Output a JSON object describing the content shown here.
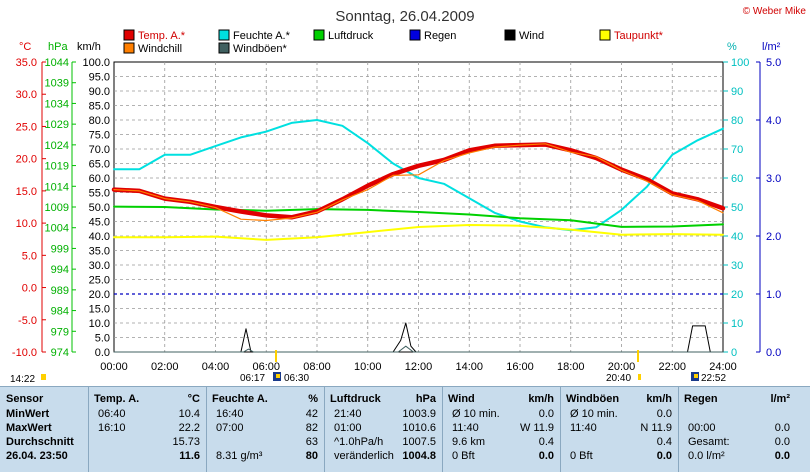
{
  "header": {
    "title": "Sonntag, 26.04.2009",
    "credit": "© Weber Mike"
  },
  "colors": {
    "temp": "#e00000",
    "humidity": "#00e0e0",
    "pressure": "#00d000",
    "rain": "#0000e0",
    "wind": "#000000",
    "dewpoint": "#ffff00",
    "windchill": "#ff7f00",
    "gust": "#406060"
  },
  "legend": [
    {
      "label": "Temp. A.*",
      "color": "#e00000"
    },
    {
      "label": "Feuchte A.*",
      "color": "#00e0e0"
    },
    {
      "label": "Luftdruck",
      "color": "#00d000"
    },
    {
      "label": "Regen",
      "color": "#0000e0"
    },
    {
      "label": "Wind",
      "color": "#000000"
    },
    {
      "label": "Taupunkt*",
      "color": "#ffff00"
    },
    {
      "label": "Windchill",
      "color": "#ff7f00"
    },
    {
      "label": "Windböen*",
      "color": "#406060"
    }
  ],
  "axes": {
    "unit_c": "°C",
    "unit_hpa": "hPa",
    "unit_kmh": "km/h",
    "unit_pct": "%",
    "unit_lm2": "l/m²",
    "celsius": [
      "35.0",
      "30.0",
      "25.0",
      "20.0",
      "15.0",
      "10.0",
      "5.0",
      "0.0",
      "-5.0",
      "-10.0"
    ],
    "hpa": [
      "1044",
      "1039",
      "1034",
      "1029",
      "1024",
      "1019",
      "1014",
      "1009",
      "1004",
      "999",
      "994",
      "989",
      "984",
      "979",
      "974"
    ],
    "kmh": [
      "100.0",
      "95.0",
      "90.0",
      "85.0",
      "80.0",
      "75.0",
      "70.0",
      "65.0",
      "60.0",
      "55.0",
      "50.0",
      "45.0",
      "40.0",
      "35.0",
      "30.0",
      "25.0",
      "20.0",
      "15.0",
      "10.0",
      "5.0",
      "0.0"
    ],
    "pct": [
      "100",
      "90",
      "80",
      "70",
      "60",
      "50",
      "40",
      "30",
      "20",
      "10",
      "0"
    ],
    "lm2": [
      "5.0",
      "4.0",
      "3.0",
      "2.0",
      "1.0",
      "0.0"
    ],
    "x": [
      "00:00",
      "02:00",
      "04:00",
      "06:00",
      "08:00",
      "10:00",
      "12:00",
      "14:00",
      "16:00",
      "18:00",
      "20:00",
      "22:00",
      "24:00"
    ]
  },
  "sun": {
    "time_left": "14:22",
    "sunrise": "06:17",
    "civil_rise": "06:30",
    "sunset": "20:40",
    "civil_set": "22:52"
  },
  "chart_data": {
    "type": "line",
    "title": "Sonntag, 26.04.2009",
    "x_unit": "hours",
    "xlim": [
      0,
      24
    ],
    "ylim_celsius": [
      -10,
      35
    ],
    "ylim_hpa": [
      974,
      1044
    ],
    "ylim_kmh": [
      0,
      100
    ],
    "ylim_pct": [
      0,
      100
    ],
    "ylim_lm2": [
      0,
      5
    ],
    "series": [
      {
        "name": "Temp. A.*",
        "axis": "celsius",
        "points": [
          [
            0,
            15.2
          ],
          [
            1,
            15.0
          ],
          [
            2,
            13.8
          ],
          [
            3,
            13.3
          ],
          [
            4,
            12.5
          ],
          [
            5,
            11.8
          ],
          [
            6,
            11.2
          ],
          [
            7,
            10.9
          ],
          [
            8,
            11.8
          ],
          [
            9,
            13.7
          ],
          [
            10,
            15.8
          ],
          [
            11,
            17.6
          ],
          [
            12,
            18.9
          ],
          [
            13,
            19.8
          ],
          [
            14,
            21.3
          ],
          [
            15,
            22.0
          ],
          [
            16,
            22.1
          ],
          [
            17,
            22.2
          ],
          [
            18,
            21.3
          ],
          [
            19,
            20.1
          ],
          [
            20,
            18.3
          ],
          [
            21,
            16.8
          ],
          [
            22,
            14.6
          ],
          [
            23,
            13.7
          ],
          [
            24,
            12.3
          ]
        ]
      },
      {
        "name": "Windchill",
        "axis": "celsius",
        "points": [
          [
            0,
            15.2
          ],
          [
            1,
            15.0
          ],
          [
            2,
            13.8
          ],
          [
            3,
            13.3
          ],
          [
            4,
            12.4
          ],
          [
            5,
            10.6
          ],
          [
            6,
            10.4
          ],
          [
            7,
            10.8
          ],
          [
            8,
            11.7
          ],
          [
            9,
            13.6
          ],
          [
            10,
            15.2
          ],
          [
            11,
            17.4
          ],
          [
            12,
            17.5
          ],
          [
            13,
            19.7
          ],
          [
            14,
            20.9
          ],
          [
            15,
            21.8
          ],
          [
            16,
            22.1
          ],
          [
            17,
            22.3
          ],
          [
            18,
            21.0
          ],
          [
            19,
            20.3
          ],
          [
            20,
            18.2
          ],
          [
            21,
            16.5
          ],
          [
            22,
            14.4
          ],
          [
            23,
            13.5
          ],
          [
            24,
            11.6
          ]
        ]
      },
      {
        "name": "Feuchte A.*",
        "axis": "pct",
        "points": [
          [
            0,
            63
          ],
          [
            1,
            63
          ],
          [
            2,
            68
          ],
          [
            3,
            68
          ],
          [
            4,
            71
          ],
          [
            5,
            74
          ],
          [
            6,
            76
          ],
          [
            7,
            79
          ],
          [
            8,
            80
          ],
          [
            9,
            78
          ],
          [
            10,
            72
          ],
          [
            11,
            65
          ],
          [
            12,
            60
          ],
          [
            13,
            58
          ],
          [
            14,
            53
          ],
          [
            15,
            48
          ],
          [
            16,
            45
          ],
          [
            17,
            43
          ],
          [
            18,
            42
          ],
          [
            19,
            43
          ],
          [
            20,
            49
          ],
          [
            21,
            57
          ],
          [
            22,
            68
          ],
          [
            23,
            73
          ],
          [
            24,
            77
          ]
        ]
      },
      {
        "name": "Luftdruck",
        "axis": "hpa",
        "points": [
          [
            0,
            1009.1
          ],
          [
            2,
            1009.0
          ],
          [
            4,
            1008.4
          ],
          [
            6,
            1008.1
          ],
          [
            8,
            1008.5
          ],
          [
            10,
            1008.3
          ],
          [
            12,
            1007.8
          ],
          [
            14,
            1007.2
          ],
          [
            16,
            1006.3
          ],
          [
            18,
            1005.8
          ],
          [
            20,
            1004.2
          ],
          [
            22,
            1004.3
          ],
          [
            24,
            1004.8
          ]
        ]
      },
      {
        "name": "Taupunkt*",
        "axis": "celsius",
        "points": [
          [
            0,
            7.8
          ],
          [
            2,
            7.8
          ],
          [
            4,
            7.9
          ],
          [
            6,
            7.4
          ],
          [
            8,
            7.8
          ],
          [
            10,
            8.6
          ],
          [
            12,
            9.4
          ],
          [
            14,
            9.7
          ],
          [
            16,
            9.6
          ],
          [
            18,
            9.0
          ],
          [
            20,
            8.2
          ],
          [
            22,
            8.3
          ],
          [
            24,
            8.2
          ]
        ]
      },
      {
        "name": "Wind",
        "axis": "kmh",
        "points": [
          [
            0,
            0
          ],
          [
            5.0,
            0
          ],
          [
            5.2,
            8
          ],
          [
            5.4,
            0
          ],
          [
            11.0,
            0
          ],
          [
            11.3,
            4
          ],
          [
            11.5,
            10
          ],
          [
            11.7,
            2
          ],
          [
            11.9,
            0
          ],
          [
            22.6,
            0
          ],
          [
            22.8,
            9
          ],
          [
            23.3,
            9
          ],
          [
            23.5,
            0
          ],
          [
            24,
            0
          ]
        ]
      },
      {
        "name": "Windböen*",
        "axis": "kmh",
        "points": [
          [
            0,
            0
          ],
          [
            5.1,
            0
          ],
          [
            5.3,
            1
          ],
          [
            5.5,
            0
          ],
          [
            11.2,
            0
          ],
          [
            11.5,
            2
          ],
          [
            11.8,
            0
          ],
          [
            24,
            0
          ]
        ]
      }
    ],
    "reference_line": {
      "axis": "lm2",
      "value": 1.0
    }
  },
  "table": {
    "headers": {
      "sensor": "Sensor",
      "temp": "Temp. A.",
      "temp_u": "°C",
      "hum": "Feuchte A.",
      "hum_u": "%",
      "press": "Luftdruck",
      "press_u": "hPa",
      "wind": "Wind",
      "wind_u": "km/h",
      "gust": "Windböen",
      "gust_u": "km/h",
      "rain": "Regen",
      "rain_u": "l/m²"
    },
    "rows": [
      {
        "label": "MinWert",
        "temp_t": "06:40",
        "temp_v": "10.4",
        "hum_t": "16:40",
        "hum_v": "42",
        "press_t": "21:40",
        "press_v": "1003.9",
        "wind_t": "Ø 10 min.",
        "wind_v": "0.0",
        "gust_t": "Ø 10 min.",
        "gust_v": "0.0",
        "rain_t": "",
        "rain_v": ""
      },
      {
        "label": "MaxWert",
        "temp_t": "16:10",
        "temp_v": "22.2",
        "hum_t": "07:00",
        "hum_v": "82",
        "press_t": "01:00",
        "press_v": "1010.6",
        "wind_t": "11:40",
        "wind_v": "W 11.9",
        "gust_t": "11:40",
        "gust_v": "N 11.9",
        "rain_t": "00:00",
        "rain_v": "0.0"
      },
      {
        "label": "Durchschnitt",
        "temp_t": "",
        "temp_v": "15.73",
        "hum_t": "",
        "hum_v": "63",
        "press_t": "^1.0hPa/h",
        "press_v": "1007.5",
        "wind_t": "9.6 km",
        "wind_v": "0.4",
        "gust_t": "",
        "gust_v": "0.4",
        "rain_t": "Gesamt:",
        "rain_v": "0.0"
      },
      {
        "label": "26.04. 23:50",
        "temp_t": "",
        "temp_v": "11.6",
        "hum_t": "8.31 g/m³",
        "hum_v": "80",
        "press_t": "veränderlich",
        "press_v": "1004.8",
        "wind_t": "0 Bft",
        "wind_v": "0.0",
        "gust_t": "0 Bft",
        "gust_v": "0.0",
        "rain_t": "0.0 l/m²",
        "rain_v": "0.0"
      }
    ]
  }
}
